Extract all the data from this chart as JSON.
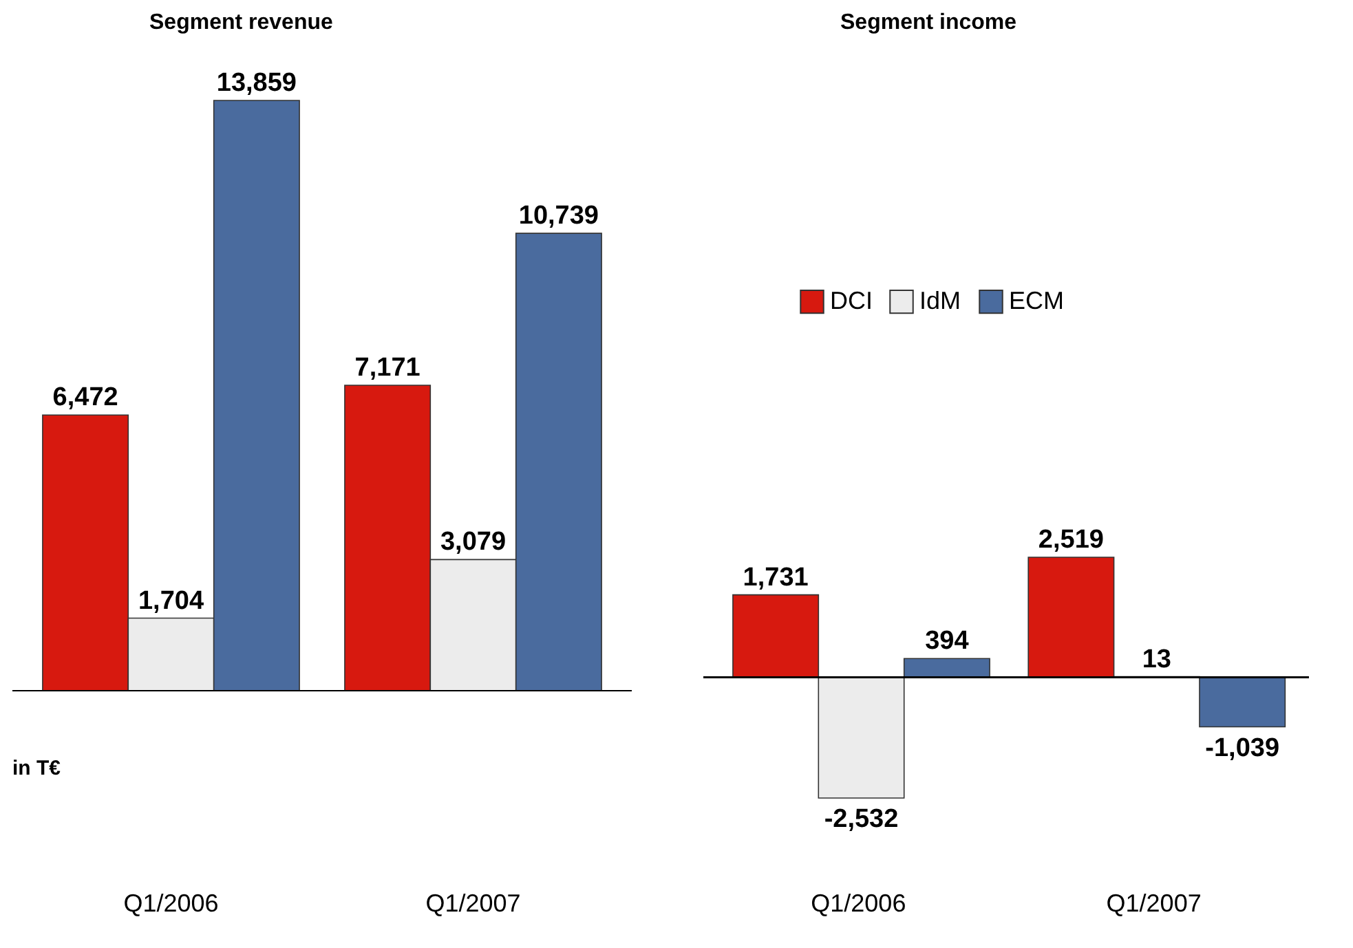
{
  "chart_data": [
    {
      "type": "bar",
      "title": "Segment revenue",
      "categories": [
        "Q1/2006",
        "Q1/2007"
      ],
      "series": [
        {
          "name": "DCI",
          "color": "#d7190f",
          "values": [
            6472,
            7171
          ],
          "value_labels": [
            "6,472",
            "7,171"
          ]
        },
        {
          "name": "IdM",
          "color": "#ececec",
          "values": [
            1704,
            3079
          ],
          "value_labels": [
            "1,704",
            "3,079"
          ]
        },
        {
          "name": "ECM",
          "color": "#4a6b9e",
          "values": [
            13859,
            10739
          ],
          "value_labels": [
            "13,859",
            "10,739"
          ]
        }
      ],
      "legend": false,
      "grid": false,
      "annotations": [
        "in T€"
      ]
    },
    {
      "type": "bar",
      "title": "Segment income",
      "categories": [
        "Q1/2006",
        "Q1/2007"
      ],
      "series": [
        {
          "name": "DCI",
          "color": "#d7190f",
          "values": [
            1731,
            2519
          ],
          "value_labels": [
            "1,731",
            "2,519"
          ]
        },
        {
          "name": "IdM",
          "color": "#ececec",
          "values": [
            -2532,
            13
          ],
          "value_labels": [
            "-2,532",
            "13"
          ]
        },
        {
          "name": "ECM",
          "color": "#4a6b9e",
          "values": [
            394,
            -1039
          ],
          "value_labels": [
            "394",
            "-1,039"
          ]
        }
      ],
      "legend": "top",
      "grid": false
    }
  ]
}
